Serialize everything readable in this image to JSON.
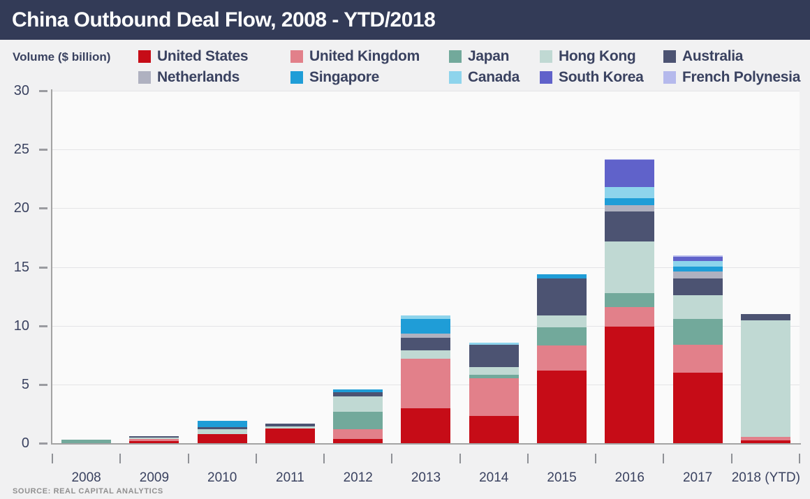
{
  "title": "China Outbound Deal Flow, 2008 - YTD/2018",
  "volume_label": "Volume ($ billion)",
  "source": "SOURCE: REAL CAPITAL ANALYTICS",
  "colors": {
    "title_bar_bg": "#333b57",
    "title_text": "#ffffff",
    "page_bg": "#f1f1f2",
    "plot_bg": "#fafafa",
    "text": "#3a4260",
    "axis": "#a3a3a3",
    "gridline": "#e4e4e6"
  },
  "legend": {
    "row1": [
      "United States",
      "United Kingdom",
      "Japan",
      "Hong Kong",
      "Australia"
    ],
    "row2": [
      "Netherlands",
      "Singapore",
      "Canada",
      "South Korea",
      "French Polynesia"
    ]
  },
  "chart_data": {
    "type": "bar",
    "stacked": true,
    "title": "China Outbound Deal Flow, 2008 - YTD/2018",
    "xlabel": "",
    "ylabel": "Volume ($ billion)",
    "ylim": [
      0,
      30
    ],
    "yticks": [
      0,
      5,
      10,
      15,
      20,
      25,
      30
    ],
    "grid": true,
    "legend_position": "top",
    "categories": [
      "2008",
      "2009",
      "2010",
      "2011",
      "2012",
      "2013",
      "2014",
      "2015",
      "2016",
      "2017",
      "2018 (YTD)"
    ],
    "series": [
      {
        "name": "United States",
        "color": "#c60c17",
        "values": [
          0,
          0.2,
          0.75,
          1.25,
          0.35,
          3.0,
          2.3,
          6.2,
          9.9,
          6.0,
          0.25
        ]
      },
      {
        "name": "United Kingdom",
        "color": "#e2808a",
        "values": [
          0,
          0.15,
          0,
          0,
          0.85,
          4.2,
          3.2,
          2.1,
          1.7,
          2.4,
          0.3
        ]
      },
      {
        "name": "Japan",
        "color": "#72a99b",
        "values": [
          0.3,
          0,
          0,
          0,
          1.45,
          0,
          0.3,
          1.55,
          1.2,
          2.2,
          0
        ]
      },
      {
        "name": "Hong Kong",
        "color": "#c0d9d3",
        "values": [
          0,
          0.15,
          0.45,
          0.2,
          1.35,
          0.7,
          0.65,
          1.05,
          4.35,
          2.0,
          9.9
        ]
      },
      {
        "name": "Australia",
        "color": "#4c5372",
        "values": [
          0,
          0.1,
          0.15,
          0.2,
          0.35,
          1.1,
          1.9,
          3.15,
          2.6,
          1.4,
          0.55
        ]
      },
      {
        "name": "Netherlands",
        "color": "#afb1c0",
        "values": [
          0,
          0,
          0,
          0,
          0,
          0.3,
          0,
          0,
          0.5,
          0.6,
          0
        ]
      },
      {
        "name": "Singapore",
        "color": "#1f9dd7",
        "values": [
          0,
          0,
          0.55,
          0,
          0.25,
          1.3,
          0,
          0.35,
          0.6,
          0.45,
          0
        ]
      },
      {
        "name": "Canada",
        "color": "#8ed4ec",
        "values": [
          0,
          0,
          0,
          0,
          0,
          0.25,
          0.2,
          0,
          0.95,
          0.45,
          0
        ]
      },
      {
        "name": "South Korea",
        "color": "#6062ca",
        "values": [
          0,
          0,
          0,
          0,
          0,
          0,
          0,
          0,
          2.3,
          0.35,
          0
        ]
      },
      {
        "name": "French Polynesia",
        "color": "#b5b9ec",
        "values": [
          0,
          0,
          0,
          0,
          0,
          0,
          0,
          0,
          0.1,
          0.15,
          0
        ]
      }
    ]
  }
}
